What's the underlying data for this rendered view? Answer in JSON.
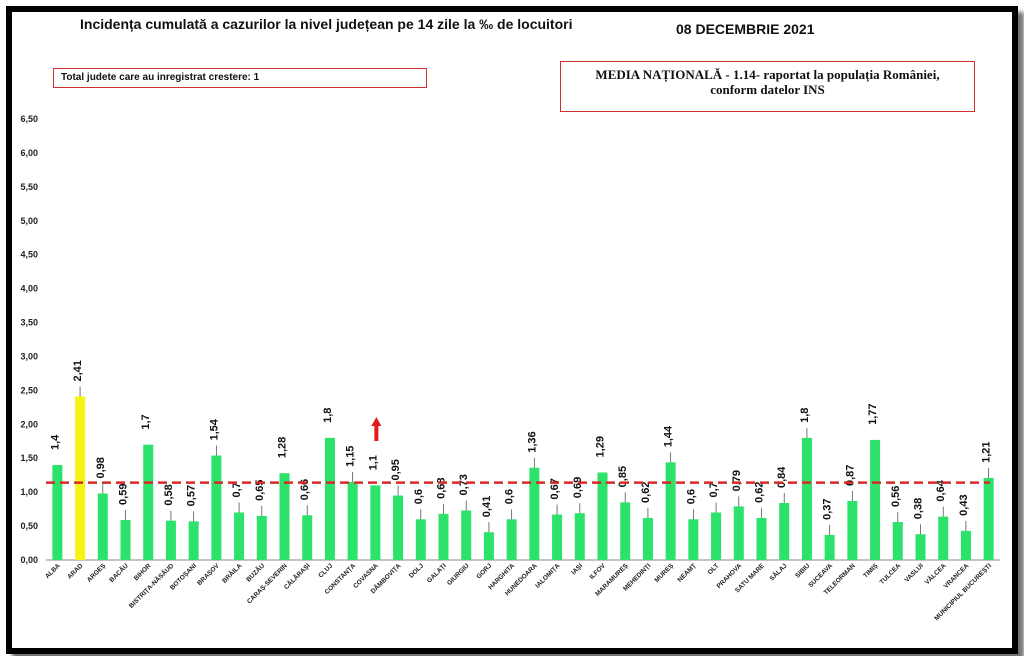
{
  "header": {
    "title": "Incidența cumulată a cazurilor la nivel județean pe 14 zile la ‰ de locuitori",
    "date": "08 DECEMBRIE 2021"
  },
  "notes": {
    "increase_count": "Total judete care au inregistrat crestere: 1",
    "national_line1": "MEDIA NAȚIONALĂ - 1.14-  raportat la populația României,",
    "national_line2": "conform datelor INS"
  },
  "chart_data": {
    "type": "bar",
    "categories": [
      "ALBA",
      "ARAD",
      "ARGEȘ",
      "BACĂU",
      "BIHOR",
      "BISTRIȚA-NĂSĂUD",
      "BOTOȘANI",
      "BRAȘOV",
      "BRĂILA",
      "BUZĂU",
      "CARAȘ-SEVERIN",
      "CĂLĂRAȘI",
      "CLUJ",
      "CONSTANȚA",
      "COVASNA",
      "DÂMBOVIȚA",
      "DOLJ",
      "GALAȚI",
      "GIURGIU",
      "GORJ",
      "HARGHITA",
      "HUNEDOARA",
      "IALOMIȚA",
      "IAȘI",
      "ILFOV",
      "MARAMUREȘ",
      "MEHEDINȚI",
      "MUREȘ",
      "NEAMȚ",
      "OLT",
      "PRAHOVA",
      "SATU MARE",
      "SĂLAJ",
      "SIBIU",
      "SUCEAVA",
      "TELEORMAN",
      "TIMIȘ",
      "TULCEA",
      "VASLUI",
      "VÂLCEA",
      "VRANCEA",
      "MUNICIPIUL BUCUREȘTI"
    ],
    "values": [
      1.4,
      2.41,
      0.98,
      0.59,
      1.7,
      0.58,
      0.57,
      1.54,
      0.7,
      0.65,
      1.28,
      0.66,
      1.8,
      1.15,
      1.1,
      0.95,
      0.6,
      0.68,
      0.73,
      0.41,
      0.6,
      1.36,
      0.67,
      0.69,
      1.29,
      0.85,
      0.62,
      1.44,
      0.6,
      0.7,
      0.79,
      0.62,
      0.84,
      1.8,
      0.37,
      0.87,
      1.77,
      0.56,
      0.38,
      0.64,
      0.43,
      1.21
    ],
    "value_labels": [
      "1,4",
      "2,41",
      "0,98",
      "0,59",
      "1,7",
      "0,58",
      "0,57",
      "1,54",
      "0,7",
      "0,65",
      "1,28",
      "0,66",
      "1,8",
      "1,15",
      "1,1",
      "0,95",
      "0,6",
      "0,68",
      "0,73",
      "0,41",
      "0,6",
      "1,36",
      "0,67",
      "0,69",
      "1,29",
      "0,85",
      "0,62",
      "1,44",
      "0,6",
      "0,7",
      "0,79",
      "0,62",
      "0,84",
      "1,8",
      "0,37",
      "0,87",
      "1,77",
      "0,56",
      "0,38",
      "0,64",
      "0,43",
      "1,21"
    ],
    "yticks": [
      "0,00",
      "0,50",
      "1,00",
      "1,50",
      "2,00",
      "2,50",
      "3,00",
      "3,50",
      "4,00",
      "4,50",
      "5,00",
      "5,50",
      "6,00",
      "6,50"
    ],
    "ylim": [
      0,
      6.5
    ],
    "reference_line": 1.14,
    "highlight_category": "ARAD",
    "increase_marker_category": "COVASNA",
    "grid": false,
    "colors": {
      "bar": "#2de26a",
      "highlight": "#f5f514",
      "reference": "#d62a2a",
      "arrow": "#e31b1b",
      "box_border": "#d0302f"
    }
  }
}
